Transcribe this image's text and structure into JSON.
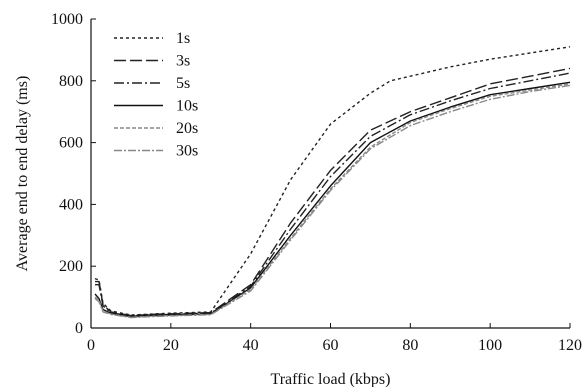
{
  "chart_data": {
    "type": "line",
    "title": "",
    "xlabel": "Traffic load (kbps)",
    "ylabel": "Average end to end delay (ms)",
    "xlim": [
      0,
      120
    ],
    "ylim": [
      0,
      1000
    ],
    "xticks": [
      0,
      20,
      40,
      60,
      80,
      100,
      120
    ],
    "yticks": [
      0,
      200,
      400,
      600,
      800,
      1000
    ],
    "grid": false,
    "legend_position": "top-left",
    "series": [
      {
        "name": "1s",
        "dash": "3,3",
        "color": "#222222",
        "x": [
          1,
          2,
          3,
          5,
          10,
          15,
          20,
          25,
          30,
          40,
          50,
          60,
          70,
          75,
          80,
          90,
          100,
          110,
          120
        ],
        "y": [
          160,
          155,
          80,
          55,
          42,
          45,
          48,
          50,
          52,
          240,
          480,
          660,
          760,
          800,
          815,
          845,
          870,
          890,
          910
        ]
      },
      {
        "name": "3s",
        "dash": "12,4",
        "color": "#222222",
        "x": [
          1,
          2,
          3,
          5,
          10,
          15,
          20,
          25,
          30,
          40,
          50,
          60,
          70,
          80,
          90,
          100,
          110,
          120
        ],
        "y": [
          150,
          150,
          75,
          52,
          40,
          44,
          46,
          48,
          50,
          140,
          340,
          510,
          640,
          700,
          745,
          790,
          815,
          840
        ]
      },
      {
        "name": "5s",
        "dash": "10,3,2,3",
        "color": "#222222",
        "x": [
          1,
          2,
          3,
          5,
          10,
          15,
          20,
          25,
          30,
          40,
          50,
          60,
          70,
          80,
          90,
          100,
          110,
          120
        ],
        "y": [
          140,
          140,
          72,
          50,
          38,
          42,
          44,
          46,
          48,
          135,
          320,
          490,
          620,
          690,
          735,
          775,
          800,
          825
        ]
      },
      {
        "name": "10s",
        "dash": "",
        "color": "#111111",
        "x": [
          1,
          2,
          3,
          5,
          10,
          15,
          20,
          25,
          30,
          40,
          50,
          60,
          70,
          80,
          90,
          100,
          110,
          120
        ],
        "y": [
          110,
          95,
          60,
          48,
          37,
          40,
          42,
          44,
          46,
          130,
          300,
          460,
          600,
          670,
          715,
          755,
          775,
          795
        ]
      },
      {
        "name": "20s",
        "dash": "4,2",
        "color": "#888888",
        "x": [
          1,
          2,
          3,
          5,
          10,
          15,
          20,
          25,
          30,
          40,
          50,
          60,
          70,
          80,
          90,
          100,
          110,
          120
        ],
        "y": [
          100,
          90,
          55,
          45,
          35,
          38,
          40,
          42,
          44,
          125,
          290,
          450,
          585,
          665,
          710,
          750,
          770,
          790
        ]
      },
      {
        "name": "30s",
        "dash": "8,2,2,2",
        "color": "#888888",
        "x": [
          1,
          2,
          3,
          5,
          10,
          15,
          20,
          25,
          30,
          40,
          50,
          60,
          70,
          80,
          90,
          100,
          110,
          120
        ],
        "y": [
          95,
          85,
          52,
          44,
          34,
          37,
          39,
          41,
          43,
          120,
          285,
          445,
          580,
          655,
          700,
          740,
          765,
          785
        ]
      }
    ]
  }
}
